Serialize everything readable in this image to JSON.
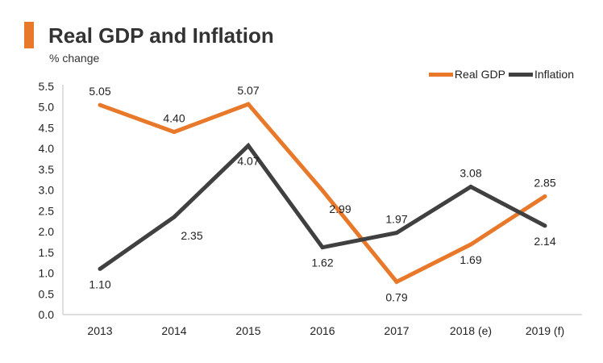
{
  "header": {
    "title": "Real GDP and Inflation",
    "subtitle": "% change"
  },
  "colors": {
    "accent": "#e8782a",
    "real_gdp": "#e8782a",
    "inflation": "#404040",
    "axis": "#bfbfbf"
  },
  "chart_data": {
    "type": "line",
    "title": "Real GDP and Inflation",
    "subtitle": "% change",
    "xlabel": "",
    "ylabel": "% change",
    "categories": [
      "2013",
      "2014",
      "2015",
      "2016",
      "2017",
      "2018 (e)",
      "2019 (f)"
    ],
    "ylim": [
      0,
      5.5
    ],
    "yticks": [
      "0.0",
      "0.5",
      "1.0",
      "1.5",
      "2.0",
      "2.5",
      "3.0",
      "3.5",
      "4.0",
      "4.5",
      "5.0",
      "5.5"
    ],
    "grid": false,
    "legend_position": "top-right",
    "series": [
      {
        "name": "Real GDP",
        "values": [
          5.05,
          4.4,
          5.07,
          2.99,
          0.79,
          1.69,
          2.85
        ],
        "labels": [
          "5.05",
          "4.40",
          "5.07",
          "2.99",
          "0.79",
          "1.69",
          "2.85"
        ]
      },
      {
        "name": "Inflation",
        "values": [
          1.1,
          2.35,
          4.07,
          1.62,
          1.97,
          3.08,
          2.14
        ],
        "labels": [
          "1.10",
          "2.35",
          "4.07",
          "1.62",
          "1.97",
          "3.08",
          "2.14"
        ]
      }
    ]
  }
}
